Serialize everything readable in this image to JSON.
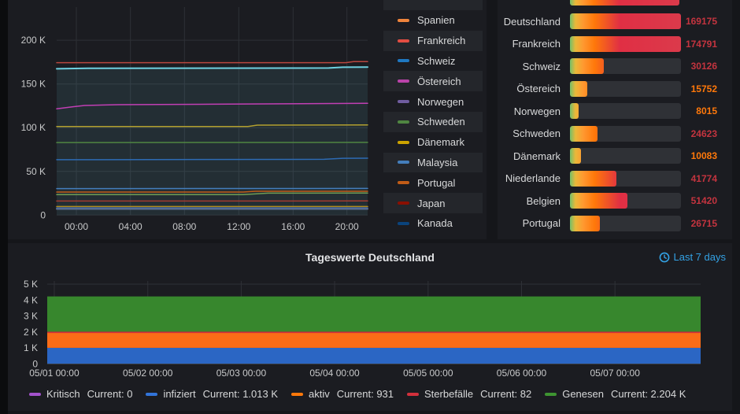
{
  "colors": {
    "page_bg": "#15161a",
    "panel_bg": "#1b1c21",
    "stripe_bg": "#24262b",
    "track_bg": "#2f3136",
    "grid": "#2e3036",
    "axis_text": "#c8c9ca",
    "text": "#d8d9da",
    "link_blue": "#33a2e5",
    "value_red": "#c4343f",
    "value_orange": "#ff780a"
  },
  "top_chart": {
    "y_ticks": [
      {
        "label": "200 K",
        "v": 200
      },
      {
        "label": "150 K",
        "v": 150
      },
      {
        "label": "100 K",
        "v": 100
      },
      {
        "label": "50 K",
        "v": 50
      },
      {
        "label": "0",
        "v": 0
      }
    ],
    "x_ticks": [
      {
        "label": "00:00",
        "t": 0.0633
      },
      {
        "label": "04:00",
        "t": 0.2372
      },
      {
        "label": "08:00",
        "t": 0.4109
      },
      {
        "label": "12:00",
        "t": 0.5856
      },
      {
        "label": "16:00",
        "t": 0.7603
      },
      {
        "label": "20:00",
        "t": 0.9334
      }
    ],
    "series": [
      {
        "color": "#6ED0E0",
        "w": 2,
        "fill": "rgba(110,208,224,0.10)",
        "points": [
          [
            0,
            167.4
          ],
          [
            0.1,
            167.9
          ],
          [
            0.45,
            168.1
          ],
          [
            0.875,
            168.3
          ],
          [
            0.92,
            169.2
          ],
          [
            1,
            169.3
          ]
        ]
      },
      {
        "color": "#b8473f",
        "w": 1.5,
        "points": [
          [
            0,
            174.4
          ],
          [
            0.93,
            174.4
          ],
          [
            0.955,
            175.6
          ],
          [
            1,
            175.6
          ]
        ]
      },
      {
        "color": "#c13fb4",
        "w": 1.5,
        "points": [
          [
            0,
            121.6
          ],
          [
            0.05,
            123.8
          ],
          [
            0.09,
            125.4
          ],
          [
            0.2,
            126.3
          ],
          [
            0.5,
            126.9
          ],
          [
            1,
            127.9
          ]
        ]
      },
      {
        "color": "#b3a02f",
        "w": 1.5,
        "points": [
          [
            0,
            101.4
          ],
          [
            0.615,
            101.4
          ],
          [
            0.645,
            102.9
          ],
          [
            1,
            103.1
          ]
        ]
      },
      {
        "color": "#508642",
        "w": 1.5,
        "points": [
          [
            0,
            83
          ],
          [
            1,
            83.2
          ]
        ]
      },
      {
        "color": "#2d6bb4",
        "w": 1.5,
        "points": [
          [
            0,
            63.4
          ],
          [
            0.86,
            63.8
          ],
          [
            0.92,
            65
          ],
          [
            1,
            65.1
          ]
        ]
      },
      {
        "color": "#447EBC",
        "w": 1.5,
        "points": [
          [
            0,
            30.3
          ],
          [
            1,
            30.5
          ]
        ]
      },
      {
        "color": "#C15C17",
        "w": 1.5,
        "points": [
          [
            0,
            26.4
          ],
          [
            0.6,
            26.4
          ],
          [
            0.64,
            27.3
          ],
          [
            1,
            27.3
          ]
        ]
      },
      {
        "color": "#6f9e55",
        "w": 1.5,
        "points": [
          [
            0,
            23.4
          ],
          [
            0.6,
            23.4
          ],
          [
            0.68,
            25.1
          ],
          [
            1,
            25.2
          ]
        ]
      },
      {
        "color": "#a33a30",
        "w": 1.5,
        "points": [
          [
            0,
            16.1
          ],
          [
            1,
            16.2
          ]
        ]
      },
      {
        "color": "#B08D1D",
        "w": 1.5,
        "points": [
          [
            0,
            9.8
          ],
          [
            1,
            9.8
          ]
        ]
      },
      {
        "color": "#3f66a5",
        "w": 1.5,
        "points": [
          [
            0,
            8.3
          ],
          [
            1,
            8.3
          ]
        ]
      },
      {
        "color": "#5c6e91",
        "w": 2,
        "points": [
          [
            0,
            7
          ],
          [
            1,
            7
          ]
        ]
      }
    ]
  },
  "ts_legend": {
    "partial_top_row": true,
    "items": [
      {
        "label": "Spanien",
        "color": "#EF843C",
        "stripe": false
      },
      {
        "label": "Frankreich",
        "color": "#E24D42",
        "stripe": true
      },
      {
        "label": "Schweiz",
        "color": "#1F78C1",
        "stripe": false
      },
      {
        "label": "Östereich",
        "color": "#BA43A9",
        "stripe": true
      },
      {
        "label": "Norwegen",
        "color": "#705DA0",
        "stripe": false
      },
      {
        "label": "Schweden",
        "color": "#508642",
        "stripe": true
      },
      {
        "label": "Dänemark",
        "color": "#CCA300",
        "stripe": false
      },
      {
        "label": "Malaysia",
        "color": "#447EBC",
        "stripe": true
      },
      {
        "label": "Portugal",
        "color": "#C15C17",
        "stripe": false
      },
      {
        "label": "Japan",
        "color": "#890F02",
        "stripe": true
      },
      {
        "label": "Kanada",
        "color": "#0A437C",
        "stripe": false
      }
    ]
  },
  "bar_panel": {
    "max": 100000,
    "gradient_anchors": [
      [
        0,
        "#73BF69"
      ],
      [
        0.05,
        "#EAB839"
      ],
      [
        0.12,
        "#FF9830"
      ],
      [
        0.22,
        "#FF780A"
      ],
      [
        0.45,
        "#E02F44"
      ],
      [
        1,
        "#DB3A4B"
      ]
    ],
    "partial_top_bar": true,
    "rows": [
      {
        "label": "Deutschland",
        "value": "169175",
        "num": 169175,
        "value_color": "#c4343f"
      },
      {
        "label": "Frankreich",
        "value": "174791",
        "num": 174791,
        "value_color": "#c4343f"
      },
      {
        "label": "Schweiz",
        "value": "30126",
        "num": 30126,
        "value_color": "#c4343f"
      },
      {
        "label": "Östereich",
        "value": "15752",
        "num": 15752,
        "value_color": "#ff780a"
      },
      {
        "label": "Norwegen",
        "value": "8015",
        "num": 8015,
        "value_color": "#ff780a"
      },
      {
        "label": "Schweden",
        "value": "24623",
        "num": 24623,
        "value_color": "#c4343f"
      },
      {
        "label": "Dänemark",
        "value": "10083",
        "num": 10083,
        "value_color": "#ff780a"
      },
      {
        "label": "Niederlande",
        "value": "41774",
        "num": 41774,
        "value_color": "#c4343f"
      },
      {
        "label": "Belgien",
        "value": "51420",
        "num": 51420,
        "value_color": "#c4343f"
      },
      {
        "label": "Portugal",
        "value": "26715",
        "num": 26715,
        "value_color": "#c4343f"
      }
    ]
  },
  "bottom_panel": {
    "title": "Tageswerte Deutschland",
    "time_range": "Last 7 days",
    "chart": {
      "y_ticks": [
        {
          "label": "5 K",
          "v": 5
        },
        {
          "label": "4 K",
          "v": 4
        },
        {
          "label": "3 K",
          "v": 3
        },
        {
          "label": "2 K",
          "v": 2
        },
        {
          "label": "1 K",
          "v": 1
        },
        {
          "label": "0",
          "v": 0
        }
      ],
      "x_ticks": [
        {
          "label": "05/01 00:00",
          "t": 0.0108
        },
        {
          "label": "05/02 00:00",
          "t": 0.1539
        },
        {
          "label": "05/03 00:00",
          "t": 0.2969
        },
        {
          "label": "05/04 00:00",
          "t": 0.4398
        },
        {
          "label": "05/05 00:00",
          "t": 0.5829
        },
        {
          "label": "05/06 00:00",
          "t": 0.7259
        },
        {
          "label": "05/07 00:00",
          "t": 0.8689
        }
      ],
      "bands": [
        {
          "name": "infiziert",
          "color": "#2b66c4",
          "from": 0,
          "to": 1.013
        },
        {
          "name": "aktiv",
          "color": "#fa6c17",
          "from": 1.013,
          "to": 1.944
        },
        {
          "name": "Sterbefälle",
          "color": "#d2303c",
          "from": 1.944,
          "to": 2.026
        },
        {
          "name": "Genesen",
          "color": "#37872d",
          "from": 2.026,
          "to": 4.23
        }
      ]
    },
    "legend": [
      {
        "label": "Kritisch",
        "current": "Current: 0",
        "color": "#A352CC"
      },
      {
        "label": "infiziert",
        "current": "Current: 1.013 K",
        "color": "#3274D9"
      },
      {
        "label": "aktiv",
        "current": "Current: 931",
        "color": "#FF780A"
      },
      {
        "label": "Sterbefälle",
        "current": "Current: 82",
        "color": "#D2303C"
      },
      {
        "label": "Genesen",
        "current": "Current: 2.204 K",
        "color": "#3E9431"
      }
    ]
  }
}
